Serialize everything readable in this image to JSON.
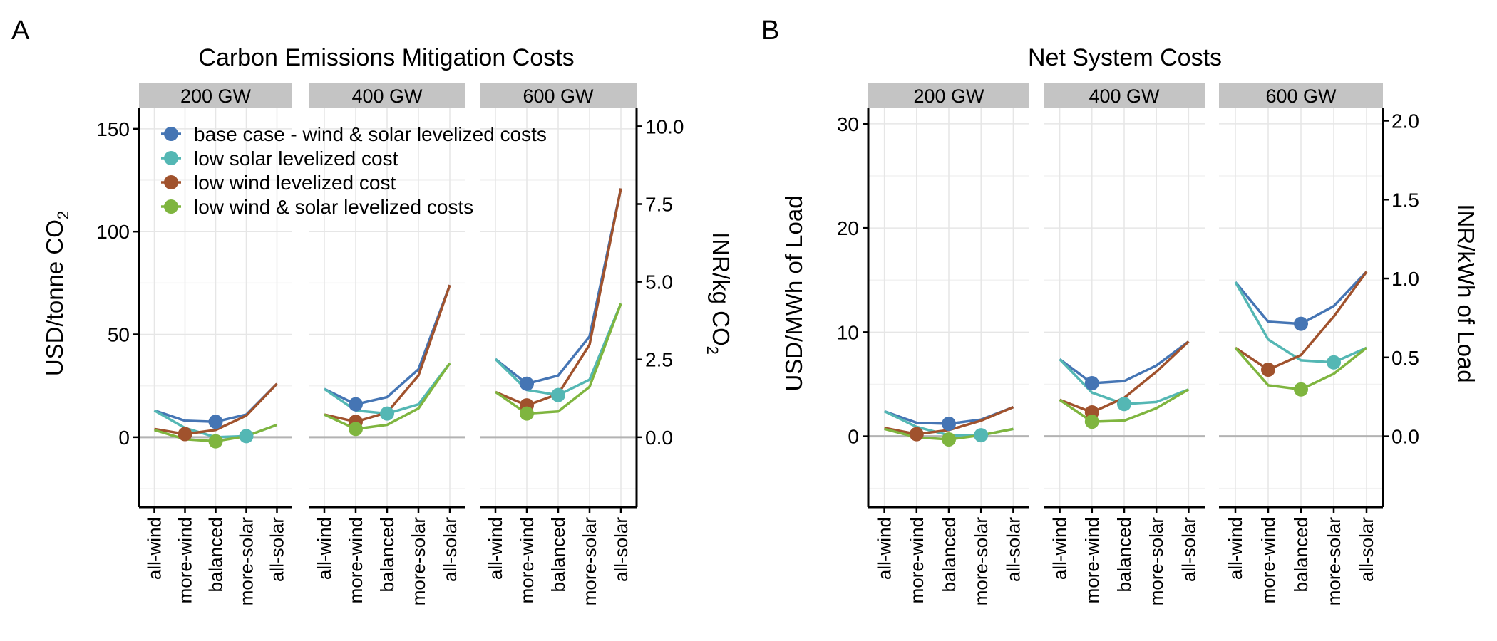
{
  "panels": {
    "A": {
      "letter": "A",
      "title": "Carbon Emissions Mitigation Costs"
    },
    "B": {
      "letter": "B",
      "title": "Net System Costs"
    }
  },
  "colors": {
    "base": "#4575b4",
    "lowsolar": "#54b7b4",
    "lowwind": "#a0522d",
    "lowboth": "#7fb53f",
    "strip": "#c4c4c4",
    "grid": "#e6e6e6",
    "zero": "#b3b3b3"
  },
  "chart_data": [
    {
      "type": "line",
      "panel": "A",
      "title": "Carbon Emissions Mitigation Costs",
      "ylabel": "USD/tonne CO2",
      "ylabel_right": "INR/kg CO2",
      "ylim": [
        -34,
        160
      ],
      "yticks": [
        "0",
        "50",
        "100",
        "150"
      ],
      "yticks_values": [
        0,
        50,
        100,
        150
      ],
      "yticks_right": [
        "0.0",
        "2.5",
        "5.0",
        "7.5",
        "10.0"
      ],
      "yticks_right_values": [
        0,
        2.5,
        5.0,
        7.5,
        10.0
      ],
      "facets": [
        "200 GW",
        "400 GW",
        "600 GW"
      ],
      "categories": [
        "all-wind",
        "more-wind",
        "balanced",
        "more-solar",
        "all-solar"
      ],
      "legend": [
        {
          "key": "base",
          "label": "base case - wind & solar levelized costs"
        },
        {
          "key": "lowsolar",
          "label": "low solar levelized cost"
        },
        {
          "key": "lowwind",
          "label": "low wind levelized cost"
        },
        {
          "key": "lowboth",
          "label": "low wind & solar levelized costs"
        }
      ],
      "series": [
        {
          "key": "base",
          "values": {
            "200 GW": [
              13,
              8,
              7.5,
              11,
              26
            ],
            "400 GW": [
              23.5,
              16,
              19.5,
              33,
              74
            ],
            "600 GW": [
              38,
              26,
              30,
              49,
              121
            ]
          },
          "marker": {
            "200 GW": 2,
            "400 GW": 1,
            "600 GW": 1
          }
        },
        {
          "key": "lowsolar",
          "values": {
            "200 GW": [
              13,
              4.5,
              0,
              0.5,
              6
            ],
            "400 GW": [
              23.5,
              13,
              11.5,
              16,
              36
            ],
            "600 GW": [
              38,
              23,
              20.5,
              28,
              65
            ]
          },
          "marker": {
            "200 GW": 3,
            "400 GW": 2,
            "600 GW": 2
          }
        },
        {
          "key": "lowwind",
          "values": {
            "200 GW": [
              4,
              1.5,
              3.5,
              10.5,
              26
            ],
            "400 GW": [
              11,
              7.5,
              12,
              30,
              74
            ],
            "600 GW": [
              22,
              15.5,
              21,
              45,
              121
            ]
          },
          "marker": {
            "200 GW": 1,
            "400 GW": 1,
            "600 GW": 1
          }
        },
        {
          "key": "lowboth",
          "values": {
            "200 GW": [
              3.5,
              -1,
              -2,
              0.5,
              6
            ],
            "400 GW": [
              11,
              4,
              6,
              14,
              36
            ],
            "600 GW": [
              22,
              11.5,
              12.5,
              24.5,
              65
            ]
          },
          "marker": {
            "200 GW": 2,
            "400 GW": 1,
            "600 GW": 1
          }
        }
      ]
    },
    {
      "type": "line",
      "panel": "B",
      "title": "Net System Costs",
      "ylabel": "USD/MWh of Load",
      "ylabel_right": "INR/kWh of Load",
      "ylim": [
        -6.8,
        31.5
      ],
      "yticks": [
        "0",
        "10",
        "20",
        "30"
      ],
      "yticks_values": [
        0,
        10,
        20,
        30
      ],
      "yticks_right": [
        "0.0",
        "0.5",
        "1.0",
        "1.5",
        "2.0"
      ],
      "yticks_right_values": [
        0,
        0.5,
        1.0,
        1.5,
        2.0
      ],
      "facets": [
        "200 GW",
        "400 GW",
        "600 GW"
      ],
      "categories": [
        "all-wind",
        "more-wind",
        "balanced",
        "more-solar",
        "all-solar"
      ],
      "series": [
        {
          "key": "base",
          "values": {
            "200 GW": [
              2.4,
              1.3,
              1.2,
              1.6,
              2.8
            ],
            "400 GW": [
              7.4,
              5.1,
              5.3,
              6.8,
              9.1
            ],
            "600 GW": [
              14.8,
              11,
              10.8,
              12.5,
              15.8
            ]
          },
          "marker": {
            "200 GW": 2,
            "400 GW": 1,
            "600 GW": 2
          }
        },
        {
          "key": "lowsolar",
          "values": {
            "200 GW": [
              2.4,
              0.9,
              0.1,
              0.1,
              0.7
            ],
            "400 GW": [
              7.4,
              4.2,
              3.1,
              3.3,
              4.5
            ],
            "600 GW": [
              14.8,
              9.3,
              7.3,
              7.1,
              8.5
            ]
          },
          "marker": {
            "200 GW": 3,
            "400 GW": 2,
            "600 GW": 3
          }
        },
        {
          "key": "lowwind",
          "values": {
            "200 GW": [
              0.8,
              0.2,
              0.6,
              1.5,
              2.8
            ],
            "400 GW": [
              3.5,
              2.3,
              3.7,
              6.2,
              9.1
            ],
            "600 GW": [
              8.5,
              6.4,
              7.8,
              11.5,
              15.8
            ]
          },
          "marker": {
            "200 GW": 1,
            "400 GW": 1,
            "600 GW": 1
          }
        },
        {
          "key": "lowboth",
          "values": {
            "200 GW": [
              0.7,
              -0.1,
              -0.3,
              0.1,
              0.7
            ],
            "400 GW": [
              3.5,
              1.4,
              1.5,
              2.7,
              4.5
            ],
            "600 GW": [
              8.5,
              4.9,
              4.5,
              6,
              8.5
            ]
          },
          "marker": {
            "200 GW": 2,
            "400 GW": 1,
            "600 GW": 2
          }
        }
      ]
    }
  ]
}
